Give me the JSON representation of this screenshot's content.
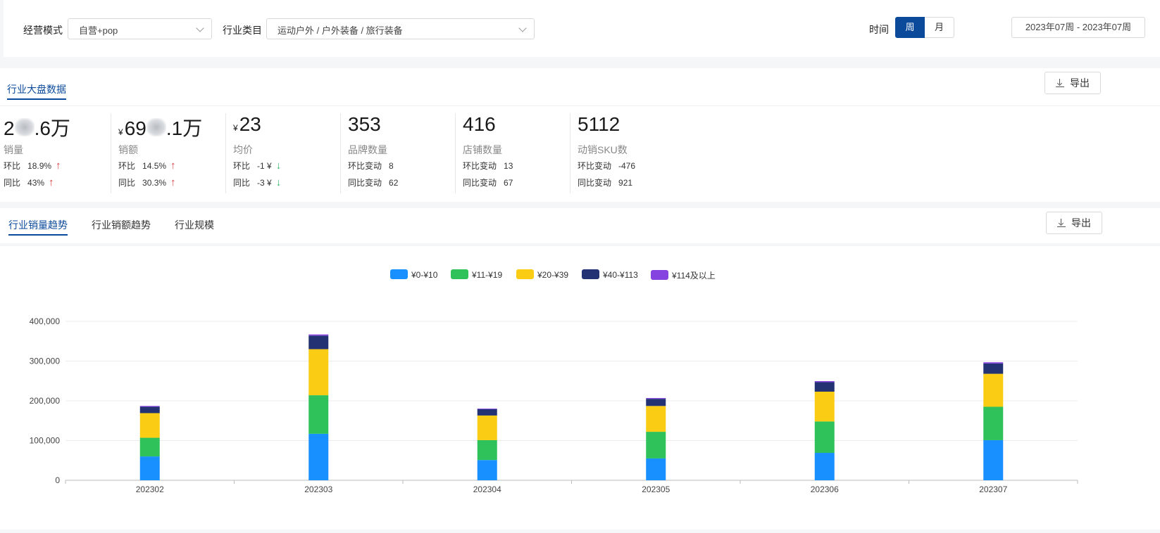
{
  "filters": {
    "mode_label": "经营模式",
    "mode_value": "自营+pop",
    "category_label": "行业类目",
    "category_value": "运动户外 / 户外装备 / 旅行装备",
    "time_label": "时间",
    "week_label": "周",
    "month_label": "月",
    "date_range": "2023年07周 - 2023年07周"
  },
  "overview": {
    "title": "行业大盘数据",
    "export_label": "导出",
    "metrics": [
      {
        "value_prefix": "2",
        "value_suffix": ".6万",
        "masked": true,
        "name": "销量",
        "row1_label": "环比",
        "row1_value": "18.9%",
        "row1_dir": "up",
        "row2_label": "同比",
        "row2_value": "43%",
        "row2_dir": "up"
      },
      {
        "currency": "¥",
        "value_prefix": "69",
        "value_suffix": ".1万",
        "masked": true,
        "name": "销额",
        "row1_label": "环比",
        "row1_value": "14.5%",
        "row1_dir": "up",
        "row2_label": "同比",
        "row2_value": "30.3%",
        "row2_dir": "up"
      },
      {
        "currency": "¥",
        "value_prefix": "23",
        "value_suffix": "",
        "masked": false,
        "name": "均价",
        "row1_label": "环比",
        "row1_value": "-1 ¥",
        "row1_dir": "down",
        "row2_label": "同比",
        "row2_value": "-3 ¥",
        "row2_dir": "down"
      },
      {
        "value_prefix": "353",
        "value_suffix": "",
        "masked": false,
        "name": "品牌数量",
        "row1_label": "环比变动",
        "row1_value": "8",
        "row1_dir": "",
        "row2_label": "同比变动",
        "row2_value": "62",
        "row2_dir": ""
      },
      {
        "value_prefix": "416",
        "value_suffix": "",
        "masked": false,
        "name": "店铺数量",
        "row1_label": "环比变动",
        "row1_value": "13",
        "row1_dir": "",
        "row2_label": "同比变动",
        "row2_value": "67",
        "row2_dir": ""
      },
      {
        "value_prefix": "5112",
        "value_suffix": "",
        "masked": false,
        "name": "动销SKU数",
        "row1_label": "环比变动",
        "row1_value": "-476",
        "row1_dir": "",
        "row2_label": "同比变动",
        "row2_value": "921",
        "row2_dir": ""
      }
    ]
  },
  "trend": {
    "tabs": [
      "行业销量趋势",
      "行业销额趋势",
      "行业规模"
    ],
    "active_tab": 0,
    "export_label": "导出"
  },
  "chart_data": {
    "type": "bar",
    "stacked": true,
    "categories": [
      "202302",
      "202303",
      "202304",
      "202305",
      "202306",
      "202307"
    ],
    "series": [
      {
        "name": "¥0-¥10",
        "color": "#1890ff",
        "values": [
          60000,
          117000,
          51000,
          55000,
          69000,
          101000
        ]
      },
      {
        "name": "¥11-¥19",
        "color": "#2fc25b",
        "values": [
          47000,
          97000,
          50000,
          67000,
          79000,
          84000
        ]
      },
      {
        "name": "¥20-¥39",
        "color": "#facc14",
        "values": [
          62000,
          116000,
          62000,
          65000,
          75000,
          83000
        ]
      },
      {
        "name": "¥40-¥113",
        "color": "#223273",
        "values": [
          16000,
          34000,
          16000,
          18000,
          24000,
          26000
        ]
      },
      {
        "name": "¥114及以上",
        "color": "#8543e0",
        "values": [
          2000,
          3000,
          1500,
          2000,
          2500,
          3000
        ]
      }
    ],
    "ylim": [
      0,
      400000
    ],
    "yticks": [
      "0",
      "100,000",
      "200,000",
      "300,000",
      "400,000"
    ],
    "legend": "top-center",
    "grid": true
  }
}
